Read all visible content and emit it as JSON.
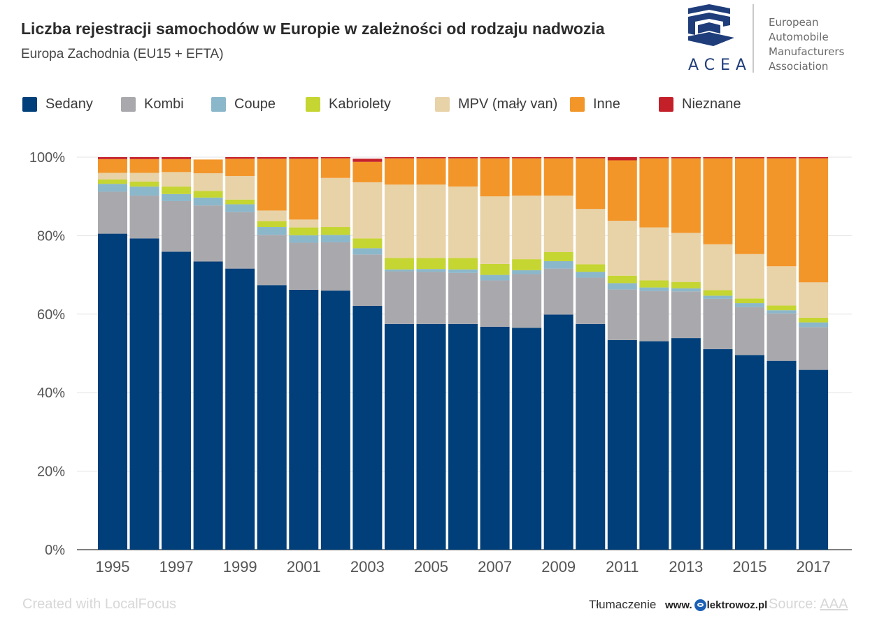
{
  "header": {
    "title": "Liczba rejestracji samochodów w Europie w zależności od rodzaju nadwozia",
    "subtitle": "Europa Zachodnia (EU15 + EFTA)"
  },
  "logo": {
    "acronym": "ACEA",
    "line1": "European",
    "line2": "Automobile",
    "line3": "Manufacturers",
    "line4": "Association",
    "color": "#1f3d7a"
  },
  "footer": {
    "created_with": "Created with LocalFocus",
    "translation_label": "Tłumaczenie",
    "brand_prefix": "www.",
    "brand_suffix": "lektrowoz.pl",
    "source_label": "Source:",
    "source_name": "AAA"
  },
  "chart_data": {
    "type": "bar",
    "stacked": true,
    "categories": [
      "1995",
      "1996",
      "1997",
      "1998",
      "1999",
      "2000",
      "2001",
      "2002",
      "2003",
      "2004",
      "2005",
      "2006",
      "2007",
      "2008",
      "2009",
      "2010",
      "2011",
      "2012",
      "2013",
      "2014",
      "2015",
      "2016",
      "2017"
    ],
    "x_tick_labels": [
      "1995",
      "1997",
      "1999",
      "2001",
      "2003",
      "2005",
      "2007",
      "2009",
      "2011",
      "2013",
      "2015",
      "2017"
    ],
    "y_ticks": [
      "0%",
      "20%",
      "40%",
      "60%",
      "80%",
      "100%"
    ],
    "ylim": [
      0,
      100
    ],
    "y_unit": "%",
    "grid": true,
    "legend_position": "top",
    "series": [
      {
        "name": "Sedany",
        "color": "#003f7a",
        "values": [
          80.5,
          79.3,
          75.9,
          73.4,
          71.6,
          67.4,
          66.2,
          66.0,
          62.1,
          57.5,
          57.5,
          57.5,
          56.8,
          56.5,
          59.9,
          57.5,
          53.4,
          53.1,
          53.9,
          51.1,
          49.6,
          48.1,
          45.8
        ]
      },
      {
        "name": "Kombi",
        "color": "#a9a9ad",
        "values": [
          10.7,
          10.9,
          12.9,
          14.3,
          14.4,
          12.8,
          12.0,
          12.3,
          13.1,
          13.4,
          13.3,
          13.0,
          11.8,
          13.7,
          11.7,
          11.8,
          12.9,
          12.8,
          11.9,
          12.8,
          12.2,
          12.1,
          10.9
        ]
      },
      {
        "name": "Coupe",
        "color": "#8bb7cb",
        "values": [
          2.0,
          2.3,
          1.8,
          2.0,
          2.0,
          2.0,
          1.9,
          1.9,
          1.6,
          0.5,
          0.7,
          0.9,
          1.4,
          1.0,
          1.9,
          1.5,
          1.6,
          0.9,
          0.8,
          0.8,
          1.0,
          0.8,
          1.2
        ]
      },
      {
        "name": "Kabriolety",
        "color": "#c5d531",
        "values": [
          1.1,
          1.3,
          1.9,
          1.7,
          1.2,
          1.5,
          2.0,
          2.0,
          2.5,
          2.9,
          2.8,
          2.9,
          2.8,
          2.8,
          2.3,
          1.9,
          1.9,
          1.8,
          1.6,
          1.4,
          1.2,
          1.2,
          1.2
        ]
      },
      {
        "name": "MPV (mały van)",
        "color": "#e8d2a8",
        "values": [
          1.7,
          2.2,
          3.7,
          4.5,
          6.0,
          2.7,
          2.0,
          12.5,
          14.3,
          18.7,
          18.7,
          18.2,
          17.2,
          16.2,
          14.4,
          14.1,
          14.0,
          13.5,
          12.5,
          11.7,
          11.3,
          10.0,
          9.0
        ]
      },
      {
        "name": "Inne",
        "color": "#f3962a",
        "values": [
          3.5,
          3.5,
          3.3,
          3.5,
          4.4,
          13.2,
          15.5,
          5.0,
          5.2,
          6.7,
          6.7,
          7.2,
          9.7,
          9.5,
          9.5,
          12.9,
          15.4,
          17.6,
          19.0,
          21.9,
          24.4,
          27.5,
          31.6
        ]
      },
      {
        "name": "Nieznane",
        "color": "#c4202a",
        "values": [
          0.5,
          0.5,
          0.5,
          0.0,
          0.4,
          0.4,
          0.4,
          0.3,
          0.8,
          0.3,
          0.3,
          0.3,
          0.3,
          0.3,
          0.3,
          0.3,
          0.8,
          0.3,
          0.3,
          0.3,
          0.3,
          0.3,
          0.3
        ]
      }
    ]
  }
}
